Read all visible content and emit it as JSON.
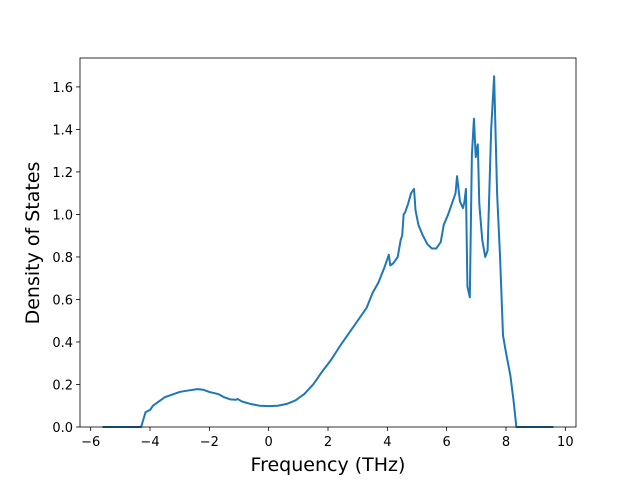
{
  "chart_data": {
    "type": "line",
    "xlabel": "Frequency (THz)",
    "ylabel": "Density of States",
    "x": [
      -5.6,
      -4.3,
      -4.15,
      -4.0,
      -3.9,
      -3.7,
      -3.5,
      -3.2,
      -3.0,
      -2.7,
      -2.4,
      -2.2,
      -2.0,
      -1.7,
      -1.5,
      -1.3,
      -1.1,
      -1.05,
      -0.9,
      -0.6,
      -0.3,
      0,
      0.3,
      0.6,
      0.9,
      1.2,
      1.5,
      1.8,
      2.1,
      2.4,
      2.7,
      3.0,
      3.3,
      3.5,
      3.7,
      3.9,
      4.0,
      4.05,
      4.1,
      4.2,
      4.35,
      4.45,
      4.5,
      4.55,
      4.6,
      4.7,
      4.8,
      4.9,
      4.95,
      5.05,
      5.2,
      5.35,
      5.5,
      5.65,
      5.8,
      5.9,
      6.05,
      6.2,
      6.3,
      6.35,
      6.45,
      6.55,
      6.6,
      6.65,
      6.7,
      6.78,
      6.85,
      6.92,
      6.98,
      7.05,
      7.1,
      7.2,
      7.3,
      7.38,
      7.5,
      7.6,
      7.7,
      7.8,
      7.9,
      8.0,
      8.15,
      8.25,
      8.35,
      9.6
    ],
    "series": [
      {
        "color": "#1f77b4",
        "values": [
          0,
          0,
          0.07,
          0.08,
          0.1,
          0.12,
          0.14,
          0.155,
          0.165,
          0.172,
          0.178,
          0.175,
          0.165,
          0.155,
          0.14,
          0.13,
          0.128,
          0.132,
          0.12,
          0.108,
          0.1,
          0.098,
          0.1,
          0.108,
          0.125,
          0.155,
          0.2,
          0.26,
          0.315,
          0.38,
          0.44,
          0.5,
          0.56,
          0.63,
          0.68,
          0.75,
          0.79,
          0.81,
          0.76,
          0.77,
          0.8,
          0.88,
          0.9,
          1.0,
          1.01,
          1.05,
          1.1,
          1.12,
          1.02,
          0.95,
          0.9,
          0.86,
          0.84,
          0.84,
          0.87,
          0.95,
          1.0,
          1.06,
          1.1,
          1.18,
          1.06,
          1.03,
          1.06,
          1.12,
          0.66,
          0.61,
          1.28,
          1.45,
          1.27,
          1.33,
          1.05,
          0.88,
          0.8,
          0.83,
          1.4,
          1.65,
          1.1,
          0.8,
          0.43,
          0.35,
          0.24,
          0.13,
          0,
          0
        ]
      }
    ],
    "xlim": [
      -6.36,
      10.36
    ],
    "ylim": [
      0,
      1.736
    ],
    "xticks": [
      {
        "value": -6,
        "label": "−6"
      },
      {
        "value": -4,
        "label": "−4"
      },
      {
        "value": -2,
        "label": "−2"
      },
      0,
      2,
      4,
      6,
      8,
      10
    ],
    "yticks": [
      {
        "value": 0,
        "label": "0.0"
      },
      {
        "value": 0.2,
        "label": "0.2"
      },
      {
        "value": 0.4,
        "label": "0.4"
      },
      {
        "value": 0.6,
        "label": "0.6"
      },
      {
        "value": 0.8,
        "label": "0.8"
      },
      {
        "value": 1.0,
        "label": "1.0"
      },
      {
        "value": 1.2,
        "label": "1.2"
      },
      {
        "value": 1.4,
        "label": "1.4"
      },
      {
        "value": 1.6,
        "label": "1.6"
      }
    ],
    "grid": false
  }
}
